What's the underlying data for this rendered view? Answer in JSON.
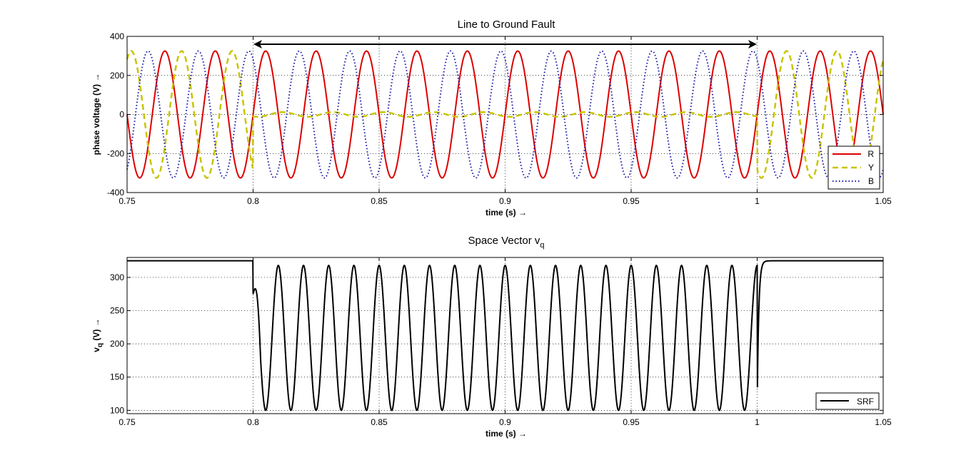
{
  "chart_data": [
    {
      "type": "line",
      "title": "Line to Ground Fault",
      "xlabel": "time (s) →",
      "ylabel": "phase voltage (V)  →",
      "xlim": [
        0.75,
        1.05
      ],
      "ylim": [
        -400,
        400
      ],
      "xticks": [
        "0.75",
        "0.8",
        "0.85",
        "0.9",
        "0.95",
        "1",
        "1.05"
      ],
      "yticks": [
        "400",
        "200",
        "0",
        "-200",
        "-400"
      ],
      "grid": true,
      "legend_position": "bottom-right",
      "annotation": {
        "type": "double-arrow",
        "x_start": 0.8,
        "x_end": 1.0,
        "label": ""
      },
      "series": [
        {
          "name": "R",
          "color": "#dd0000",
          "style": "solid",
          "frequency_hz": 50,
          "amplitude": 325,
          "phase_deg": 0,
          "fault_amplitude": 325
        },
        {
          "name": "Y",
          "color": "#c9c400",
          "style": "dashed",
          "frequency_hz": 50,
          "amplitude": 325,
          "phase_deg": -120,
          "fault_amplitude": 12
        },
        {
          "name": "B",
          "color": "#1a1aaa",
          "style": "dotted",
          "frequency_hz": 50,
          "amplitude": 325,
          "phase_deg": 120,
          "fault_amplitude": 325
        }
      ],
      "fault_window": [
        0.8,
        1.0
      ]
    },
    {
      "type": "line",
      "title": "Space Vector v",
      "title_subscript": "q",
      "xlabel": "time (s) →",
      "ylabel": "v",
      "ylabel_subscript": "q",
      "ylabel_suffix": " (V)  →",
      "xlim": [
        0.75,
        1.05
      ],
      "ylim": [
        95,
        330
      ],
      "xticks": [
        "0.75",
        "0.8",
        "0.85",
        "0.9",
        "0.95",
        "1",
        "1.05"
      ],
      "yticks": [
        "300",
        "250",
        "200",
        "150",
        "100"
      ],
      "grid": true,
      "legend_position": "bottom-right",
      "series": [
        {
          "name": "SRF",
          "color": "#000000",
          "style": "solid",
          "steady_value": 325,
          "fault_max": 318,
          "fault_min": 100,
          "fault_frequency_hz": 100
        }
      ],
      "fault_window": [
        0.8,
        1.0
      ]
    }
  ]
}
